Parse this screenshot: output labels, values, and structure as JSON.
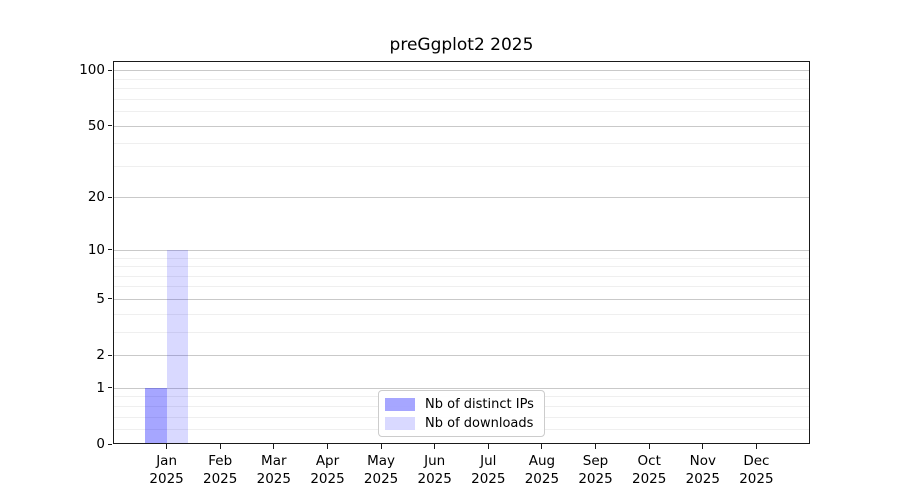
{
  "title": "preGgplot2 2025",
  "chart_data": {
    "type": "bar",
    "title": "preGgplot2 2025",
    "xlabel": "",
    "ylabel": "",
    "yscale": "log1p",
    "grid": true,
    "legend_position": "bottom-center",
    "ylim": [
      0,
      112
    ],
    "categories": [
      {
        "month": "Jan",
        "year": "2025"
      },
      {
        "month": "Feb",
        "year": "2025"
      },
      {
        "month": "Mar",
        "year": "2025"
      },
      {
        "month": "Apr",
        "year": "2025"
      },
      {
        "month": "May",
        "year": "2025"
      },
      {
        "month": "Jun",
        "year": "2025"
      },
      {
        "month": "Jul",
        "year": "2025"
      },
      {
        "month": "Aug",
        "year": "2025"
      },
      {
        "month": "Sep",
        "year": "2025"
      },
      {
        "month": "Oct",
        "year": "2025"
      },
      {
        "month": "Nov",
        "year": "2025"
      },
      {
        "month": "Dec",
        "year": "2025"
      }
    ],
    "series": [
      {
        "id": "distinct-ips",
        "name": "Nb of distinct IPs",
        "color": "#0000ff",
        "alpha": 0.35,
        "values": [
          1,
          0,
          0,
          0,
          0,
          0,
          0,
          0,
          0,
          0,
          0,
          0
        ]
      },
      {
        "id": "downloads",
        "name": "Nb of downloads",
        "color": "#0000ff",
        "alpha": 0.15,
        "values": [
          10,
          0,
          0,
          0,
          0,
          0,
          0,
          0,
          0,
          0,
          0,
          0
        ]
      }
    ],
    "yticks": [
      {
        "value": 0,
        "label": "0"
      },
      {
        "value": 1,
        "label": "1"
      },
      {
        "value": 2,
        "label": "2"
      },
      {
        "value": 5,
        "label": "5"
      },
      {
        "value": 10,
        "label": "10"
      },
      {
        "value": 20,
        "label": "20"
      },
      {
        "value": 50,
        "label": "50"
      },
      {
        "value": 100,
        "label": "100"
      }
    ],
    "yticks_minor": [
      0.2,
      0.4,
      0.6,
      0.8,
      3,
      4,
      6,
      7,
      8,
      9,
      30,
      40,
      60,
      70,
      80,
      90
    ]
  }
}
